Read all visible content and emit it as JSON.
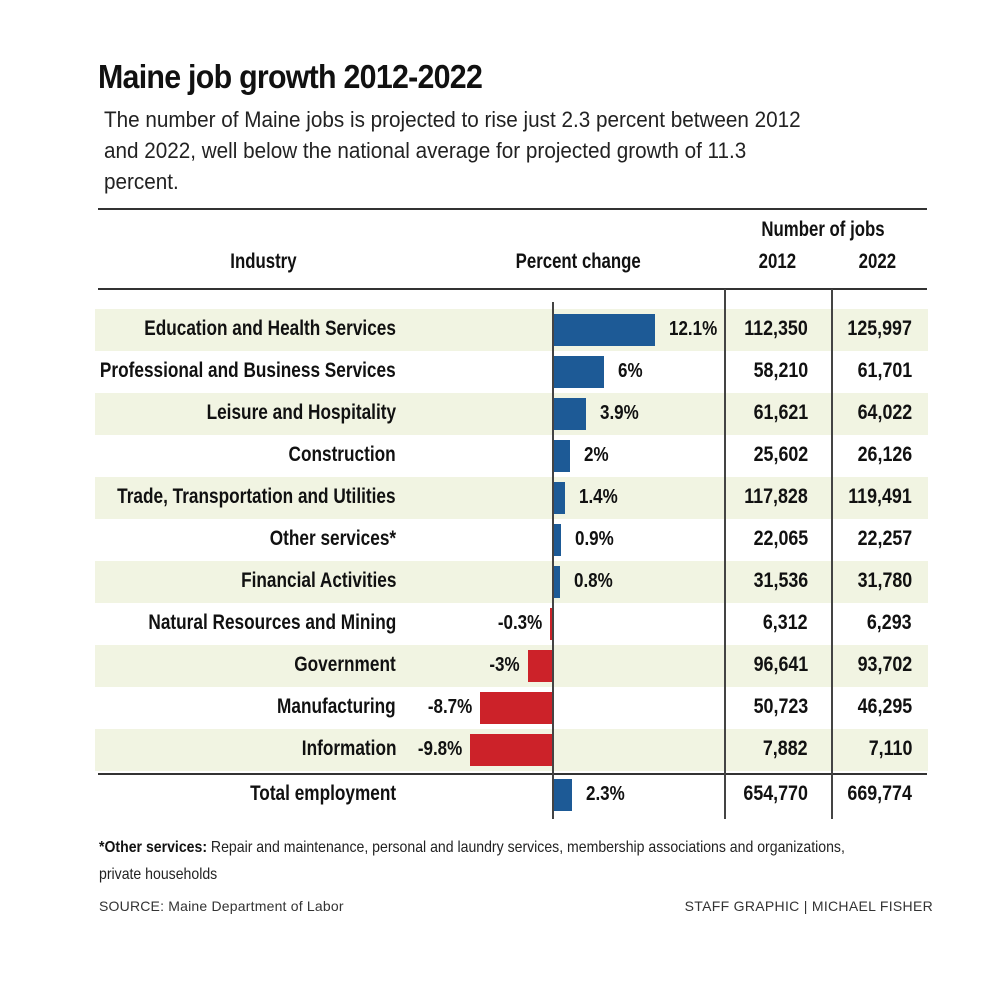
{
  "title": "Maine job growth 2012-2022",
  "subtitle": "The number of Maine jobs is projected to rise just 2.3 percent between 2012 and 2022, well below the national average for projected growth of 11.3 percent.",
  "colors": {
    "positive": "#1d5a96",
    "negative": "#cc2229",
    "row_shade": "#f1f4e2"
  },
  "headers": {
    "industry": "Industry",
    "percent_change": "Percent change",
    "number_of_jobs": "Number of jobs",
    "year_a": "2012",
    "year_b": "2022"
  },
  "chart_data": {
    "type": "bar",
    "orientation": "horizontal",
    "title": "Maine job growth 2012-2022",
    "xlabel": "Percent change",
    "ylabel": "Industry",
    "xlim": [
      -10,
      12.1
    ],
    "grid": false,
    "categories": [
      "Education and Health Services",
      "Professional and Business Services",
      "Leisure and Hospitality",
      "Construction",
      "Trade, Transportation and Utilities",
      "Other services*",
      "Financial Activities",
      "Natural Resources and Mining",
      "Government",
      "Manufacturing",
      "Information"
    ],
    "values": [
      12.1,
      6,
      3.9,
      2,
      1.4,
      0.9,
      0.8,
      -0.3,
      -3,
      -8.7,
      -9.8
    ],
    "value_labels": [
      "12.1%",
      "6%",
      "3.9%",
      "2%",
      "1.4%",
      "0.9%",
      "0.8%",
      "-0.3%",
      "-3%",
      "-8.7%",
      "-9.8%"
    ],
    "jobs_2012": [
      "112,350",
      "58,210",
      "61,621",
      "25,602",
      "117,828",
      "22,065",
      "31,536",
      "6,312",
      "96,641",
      "50,723",
      "7,882"
    ],
    "jobs_2022": [
      "125,997",
      "61,701",
      "64,022",
      "26,126",
      "119,491",
      "22,257",
      "31,780",
      "6,293",
      "93,702",
      "46,295",
      "7,110"
    ],
    "total": {
      "label": "Total employment",
      "value": 2.3,
      "value_label": "2.3%",
      "jobs_2012": "654,770",
      "jobs_2022": "669,774"
    }
  },
  "footnote": {
    "bold": "*Other services:",
    "text": " Repair and maintenance, personal and laundry services, membership associations and organizations,",
    "text2": "private households"
  },
  "source": "SOURCE: Maine Department of Labor",
  "credit": "STAFF GRAPHIC | MICHAEL FISHER"
}
